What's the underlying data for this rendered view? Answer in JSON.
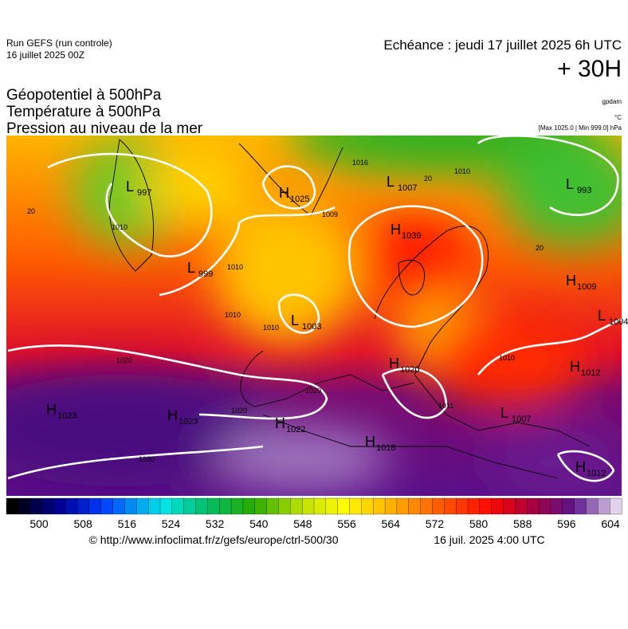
{
  "header": {
    "run": "Run GEFS (run controle)",
    "run_date": "16 juillet 2025 00Z",
    "echeance": "Echéance : jeudi 17 juillet 2025 6h UTC",
    "lead": "+ 30H"
  },
  "layers": [
    "Géopotentiel à 500hPa",
    "Température à 500hPa",
    "Pression au niveau de la mer"
  ],
  "units": {
    "geopotential": "gpdam",
    "temperature": "°C",
    "pressure": "[Max 1025.0 | Min 999.0] hPa"
  },
  "pressure_centers": [
    {
      "kind": "L",
      "value": "997"
    },
    {
      "kind": "H",
      "value": "1025"
    },
    {
      "kind": "L",
      "value": "1007"
    },
    {
      "kind": "L",
      "value": "993"
    },
    {
      "kind": "L",
      "value": "999"
    },
    {
      "kind": "H",
      "value": "1039"
    },
    {
      "kind": "L",
      "value": "1003"
    },
    {
      "kind": "H",
      "value": "1009"
    },
    {
      "kind": "L",
      "value": "1004"
    },
    {
      "kind": "H",
      "value": "1020"
    },
    {
      "kind": "H",
      "value": "1012"
    },
    {
      "kind": "H",
      "value": "1023"
    },
    {
      "kind": "H",
      "value": "1023"
    },
    {
      "kind": "H",
      "value": "1022"
    },
    {
      "kind": "L",
      "value": "1007"
    },
    {
      "kind": "H",
      "value": "1018"
    },
    {
      "kind": "H",
      "value": "1012"
    }
  ],
  "contour_labels": [
    "1016",
    "1010",
    "1009",
    "1010",
    "1010",
    "1010",
    "1010",
    "1020",
    "1020",
    "1020",
    "1020",
    "1010",
    "1011",
    "20",
    "20",
    "20"
  ],
  "colorbar": {
    "ticks": [
      500,
      508,
      516,
      524,
      532,
      540,
      548,
      556,
      564,
      572,
      580,
      588,
      596,
      604
    ]
  },
  "footer": {
    "source": "© http://www.infoclimat.fr/z/gefs/europe/ctrl-500/30",
    "time": "16 juil. 2025  4:00 UTC"
  }
}
